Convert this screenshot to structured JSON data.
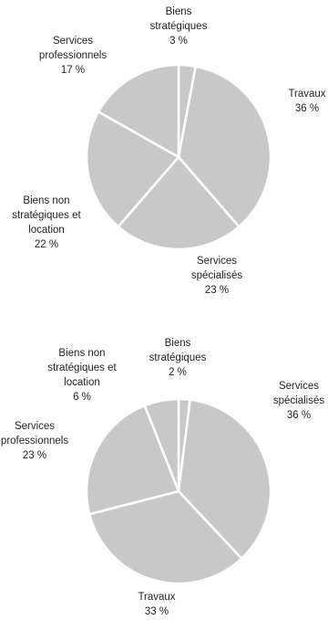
{
  "chart_data": [
    {
      "type": "pie",
      "slices": [
        {
          "lines": [
            "Biens",
            "stratégiques"
          ],
          "pct_label": "3 %",
          "value": 3
        },
        {
          "lines": [
            "Travaux"
          ],
          "pct_label": "36 %",
          "value": 36
        },
        {
          "lines": [
            "Services",
            "spécialisés"
          ],
          "pct_label": "23 %",
          "value": 23
        },
        {
          "lines": [
            "Biens non",
            "stratégiques et",
            "location"
          ],
          "pct_label": "22 %",
          "value": 22
        },
        {
          "lines": [
            "Services",
            "professionnels"
          ],
          "pct_label": "17 %",
          "value": 17
        }
      ],
      "colors": {
        "slice": "#c8c8c8",
        "separator": "#ffffff",
        "text": "#231f20"
      }
    },
    {
      "type": "pie",
      "slices": [
        {
          "lines": [
            "Biens",
            "stratégiques"
          ],
          "pct_label": "2 %",
          "value": 2
        },
        {
          "lines": [
            "Services",
            "spécialisés"
          ],
          "pct_label": "36 %",
          "value": 36
        },
        {
          "lines": [
            "Travaux"
          ],
          "pct_label": "33 %",
          "value": 33
        },
        {
          "lines": [
            "Services",
            "professionnels"
          ],
          "pct_label": "23 %",
          "value": 23
        },
        {
          "lines": [
            "Biens non",
            "stratégiques et",
            "location"
          ],
          "pct_label": "6 %",
          "value": 6
        }
      ],
      "colors": {
        "slice": "#c8c8c8",
        "separator": "#ffffff",
        "text": "#231f20"
      }
    }
  ]
}
